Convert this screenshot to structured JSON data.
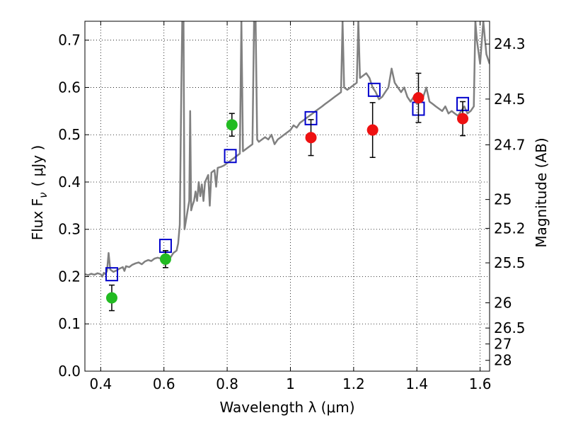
{
  "chart_data": {
    "type": "scatter",
    "xlabel": "Wavelength  λ (μm)",
    "ylabel": "Flux  F",
    "ylabel_sub": "ν",
    "ylabel_unit": "( μJy )",
    "y2label": "Magnitude (AB)",
    "xlim": [
      0.35,
      1.63
    ],
    "ylim": [
      0.0,
      0.74
    ],
    "grid": true,
    "x_ticks": [
      {
        "value": 0.4,
        "label": "0.4"
      },
      {
        "value": 0.6,
        "label": "0.6"
      },
      {
        "value": 0.8,
        "label": "0.8"
      },
      {
        "value": 1.0,
        "label": "1"
      },
      {
        "value": 1.2,
        "label": "1.2"
      },
      {
        "value": 1.4,
        "label": "1.4"
      },
      {
        "value": 1.6,
        "label": "1.6"
      }
    ],
    "y_ticks": [
      {
        "value": 0.0,
        "label": "0.0"
      },
      {
        "value": 0.1,
        "label": "0.1"
      },
      {
        "value": 0.2,
        "label": "0.2"
      },
      {
        "value": 0.3,
        "label": "0.3"
      },
      {
        "value": 0.4,
        "label": "0.4"
      },
      {
        "value": 0.5,
        "label": "0.5"
      },
      {
        "value": 0.6,
        "label": "0.6"
      },
      {
        "value": 0.7,
        "label": "0.7"
      }
    ],
    "mag_ticks": [
      {
        "value": 24.3,
        "label": "24.3"
      },
      {
        "value": 24.5,
        "label": "24.5"
      },
      {
        "value": 24.7,
        "label": "24.7"
      },
      {
        "value": 25.0,
        "label": "25"
      },
      {
        "value": 25.2,
        "label": "25.2"
      },
      {
        "value": 25.5,
        "label": "25.5"
      },
      {
        "value": 26.0,
        "label": "26"
      },
      {
        "value": 26.5,
        "label": "26.5"
      },
      {
        "value": 27.0,
        "label": "27"
      },
      {
        "value": 28.0,
        "label": "28"
      }
    ],
    "colors": {
      "spectrum": "#808080",
      "model_box": "#0000cc",
      "optical_point": "#22bb22",
      "nir_point": "#ee1111",
      "errorbar": "#000000",
      "grid": "#000000"
    },
    "spectrum": [
      [
        0.35,
        0.205
      ],
      [
        0.36,
        0.203
      ],
      [
        0.37,
        0.206
      ],
      [
        0.38,
        0.204
      ],
      [
        0.39,
        0.207
      ],
      [
        0.4,
        0.205
      ],
      [
        0.405,
        0.2
      ],
      [
        0.41,
        0.208
      ],
      [
        0.415,
        0.205
      ],
      [
        0.42,
        0.212
      ],
      [
        0.425,
        0.25
      ],
      [
        0.43,
        0.215
      ],
      [
        0.44,
        0.21
      ],
      [
        0.45,
        0.213
      ],
      [
        0.46,
        0.217
      ],
      [
        0.47,
        0.22
      ],
      [
        0.475,
        0.212
      ],
      [
        0.48,
        0.222
      ],
      [
        0.49,
        0.22
      ],
      [
        0.5,
        0.225
      ],
      [
        0.51,
        0.228
      ],
      [
        0.52,
        0.23
      ],
      [
        0.53,
        0.226
      ],
      [
        0.54,
        0.232
      ],
      [
        0.55,
        0.235
      ],
      [
        0.56,
        0.233
      ],
      [
        0.57,
        0.238
      ],
      [
        0.58,
        0.24
      ],
      [
        0.59,
        0.238
      ],
      [
        0.6,
        0.242
      ],
      [
        0.61,
        0.245
      ],
      [
        0.62,
        0.24
      ],
      [
        0.63,
        0.25
      ],
      [
        0.64,
        0.255
      ],
      [
        0.645,
        0.27
      ],
      [
        0.65,
        0.31
      ],
      [
        0.655,
        0.6
      ],
      [
        0.658,
        0.74
      ],
      [
        0.662,
        0.74
      ],
      [
        0.665,
        0.3
      ],
      [
        0.67,
        0.32
      ],
      [
        0.675,
        0.34
      ],
      [
        0.68,
        0.36
      ],
      [
        0.683,
        0.55
      ],
      [
        0.686,
        0.34
      ],
      [
        0.69,
        0.35
      ],
      [
        0.695,
        0.36
      ],
      [
        0.7,
        0.38
      ],
      [
        0.705,
        0.36
      ],
      [
        0.71,
        0.4
      ],
      [
        0.715,
        0.37
      ],
      [
        0.72,
        0.395
      ],
      [
        0.725,
        0.36
      ],
      [
        0.73,
        0.4
      ],
      [
        0.74,
        0.415
      ],
      [
        0.745,
        0.35
      ],
      [
        0.75,
        0.42
      ],
      [
        0.76,
        0.425
      ],
      [
        0.765,
        0.39
      ],
      [
        0.77,
        0.43
      ],
      [
        0.78,
        0.432
      ],
      [
        0.79,
        0.435
      ],
      [
        0.8,
        0.44
      ],
      [
        0.81,
        0.445
      ],
      [
        0.82,
        0.45
      ],
      [
        0.83,
        0.455
      ],
      [
        0.84,
        0.46
      ],
      [
        0.845,
        0.74
      ],
      [
        0.85,
        0.465
      ],
      [
        0.86,
        0.47
      ],
      [
        0.87,
        0.475
      ],
      [
        0.88,
        0.48
      ],
      [
        0.885,
        0.74
      ],
      [
        0.89,
        0.74
      ],
      [
        0.895,
        0.49
      ],
      [
        0.9,
        0.485
      ],
      [
        0.91,
        0.49
      ],
      [
        0.92,
        0.495
      ],
      [
        0.93,
        0.49
      ],
      [
        0.94,
        0.5
      ],
      [
        0.95,
        0.48
      ],
      [
        0.96,
        0.49
      ],
      [
        0.97,
        0.495
      ],
      [
        0.98,
        0.5
      ],
      [
        0.99,
        0.505
      ],
      [
        1.0,
        0.51
      ],
      [
        1.01,
        0.52
      ],
      [
        1.02,
        0.515
      ],
      [
        1.03,
        0.525
      ],
      [
        1.04,
        0.53
      ],
      [
        1.05,
        0.535
      ],
      [
        1.06,
        0.54
      ],
      [
        1.07,
        0.545
      ],
      [
        1.08,
        0.55
      ],
      [
        1.09,
        0.555
      ],
      [
        1.1,
        0.56
      ],
      [
        1.11,
        0.565
      ],
      [
        1.12,
        0.57
      ],
      [
        1.13,
        0.575
      ],
      [
        1.14,
        0.58
      ],
      [
        1.15,
        0.585
      ],
      [
        1.16,
        0.59
      ],
      [
        1.165,
        0.74
      ],
      [
        1.17,
        0.6
      ],
      [
        1.18,
        0.595
      ],
      [
        1.19,
        0.6
      ],
      [
        1.2,
        0.605
      ],
      [
        1.21,
        0.61
      ],
      [
        1.215,
        0.74
      ],
      [
        1.22,
        0.62
      ],
      [
        1.23,
        0.625
      ],
      [
        1.24,
        0.63
      ],
      [
        1.25,
        0.62
      ],
      [
        1.26,
        0.6
      ],
      [
        1.27,
        0.59
      ],
      [
        1.28,
        0.575
      ],
      [
        1.29,
        0.58
      ],
      [
        1.3,
        0.59
      ],
      [
        1.31,
        0.6
      ],
      [
        1.32,
        0.64
      ],
      [
        1.33,
        0.61
      ],
      [
        1.34,
        0.6
      ],
      [
        1.35,
        0.59
      ],
      [
        1.36,
        0.6
      ],
      [
        1.37,
        0.58
      ],
      [
        1.38,
        0.57
      ],
      [
        1.39,
        0.58
      ],
      [
        1.4,
        0.565
      ],
      [
        1.41,
        0.57
      ],
      [
        1.42,
        0.58
      ],
      [
        1.43,
        0.6
      ],
      [
        1.44,
        0.57
      ],
      [
        1.45,
        0.565
      ],
      [
        1.46,
        0.56
      ],
      [
        1.47,
        0.555
      ],
      [
        1.48,
        0.55
      ],
      [
        1.49,
        0.56
      ],
      [
        1.5,
        0.545
      ],
      [
        1.51,
        0.55
      ],
      [
        1.52,
        0.545
      ],
      [
        1.53,
        0.54
      ],
      [
        1.54,
        0.55
      ],
      [
        1.55,
        0.56
      ],
      [
        1.56,
        0.545
      ],
      [
        1.57,
        0.55
      ],
      [
        1.58,
        0.56
      ],
      [
        1.585,
        0.74
      ],
      [
        1.59,
        0.7
      ],
      [
        1.6,
        0.65
      ],
      [
        1.61,
        0.74
      ],
      [
        1.62,
        0.67
      ],
      [
        1.63,
        0.65
      ]
    ],
    "model_boxes": [
      {
        "x": 0.435,
        "y": 0.205
      },
      {
        "x": 0.605,
        "y": 0.265
      },
      {
        "x": 0.81,
        "y": 0.455
      },
      {
        "x": 1.065,
        "y": 0.535
      },
      {
        "x": 1.265,
        "y": 0.595
      },
      {
        "x": 1.405,
        "y": 0.555
      },
      {
        "x": 1.545,
        "y": 0.565
      }
    ],
    "optical_points": [
      {
        "x": 0.435,
        "y": 0.155,
        "err": 0.027
      },
      {
        "x": 0.605,
        "y": 0.237,
        "err": 0.018
      },
      {
        "x": 0.815,
        "y": 0.521,
        "err": 0.024
      }
    ],
    "nir_points": [
      {
        "x": 1.065,
        "y": 0.494,
        "err": 0.038
      },
      {
        "x": 1.26,
        "y": 0.51,
        "err": 0.058
      },
      {
        "x": 1.405,
        "y": 0.578,
        "err": 0.052
      },
      {
        "x": 1.545,
        "y": 0.534,
        "err": 0.036
      }
    ]
  }
}
